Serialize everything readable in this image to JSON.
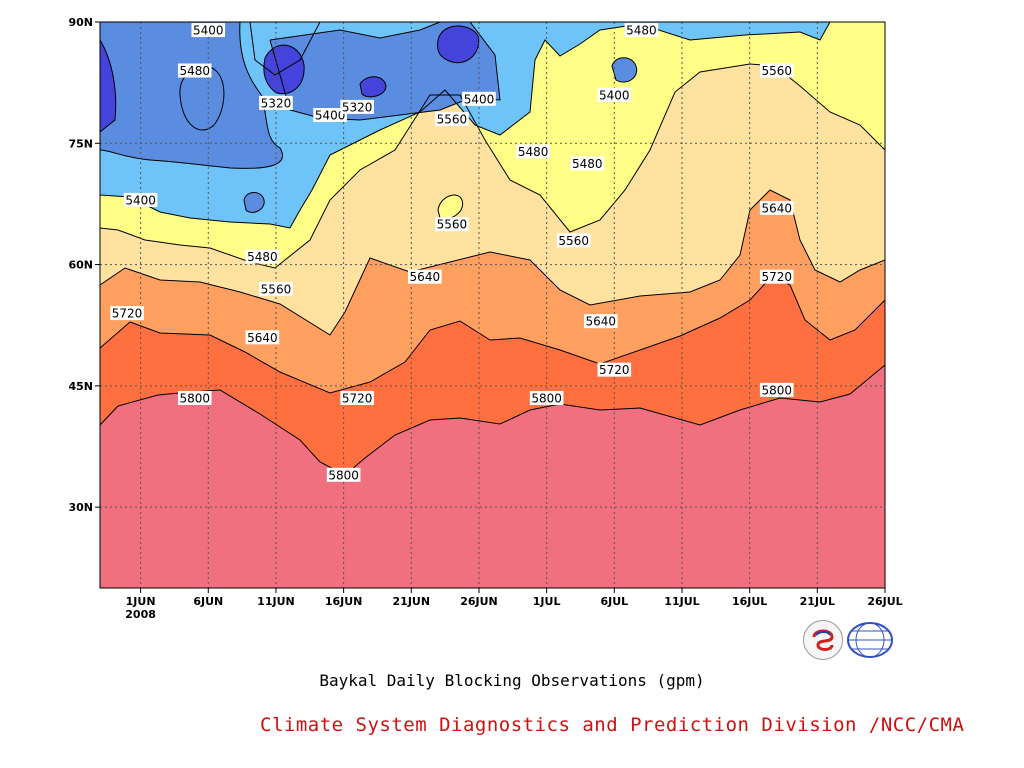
{
  "caption": "Baykal Daily Blocking Observations (gpm)",
  "credit": "Climate System Diagnostics and Prediction Division /NCC/CMA",
  "logos": {
    "left": "BCC",
    "right": "NCC"
  },
  "colors": {
    "lt5320": "#4444dd",
    "c5320": "#5a8ce0",
    "c5400": "#6ec4f8",
    "c5480": "#ffff88",
    "c5560": "#ffe2a0",
    "c5640": "#ffa060",
    "c5720": "#ff7040",
    "c5800": "#f07080",
    "credit": "#d01010"
  },
  "chart_data": {
    "type": "contour",
    "title": "Baykal Daily Blocking Observations (gpm)",
    "x_ticks": [
      "1JUN",
      "6JUN",
      "11JUN",
      "16JUN",
      "21JUN",
      "26JUN",
      "1JUL",
      "6JUL",
      "11JUL",
      "16JUL",
      "21JUL",
      "26JUL"
    ],
    "x_year_label": "2008",
    "x_range": [
      "2008-05-29",
      "2008-07-26"
    ],
    "y_ticks": [
      "30N",
      "45N",
      "60N",
      "75N",
      "90N"
    ],
    "y_range": [
      20,
      90
    ],
    "contour_levels": [
      5320,
      5400,
      5480,
      5560,
      5640,
      5720,
      5800
    ],
    "contour_labels": [
      {
        "text": "5400",
        "date": "2008-06-06",
        "lat": 89
      },
      {
        "text": "5480",
        "date": "2008-06-05",
        "lat": 84
      },
      {
        "text": "5320",
        "date": "2008-06-11",
        "lat": 80
      },
      {
        "text": "5400",
        "date": "2008-06-15",
        "lat": 78.5
      },
      {
        "text": "5320",
        "date": "2008-06-17",
        "lat": 79.5
      },
      {
        "text": "5560",
        "date": "2008-06-24",
        "lat": 78
      },
      {
        "text": "5400",
        "date": "2008-06-26",
        "lat": 80.5
      },
      {
        "text": "5480",
        "date": "2008-06-30",
        "lat": 74
      },
      {
        "text": "5480",
        "date": "2008-07-08",
        "lat": 89
      },
      {
        "text": "5400",
        "date": "2008-07-06",
        "lat": 81
      },
      {
        "text": "5480",
        "date": "2008-07-04",
        "lat": 72.5
      },
      {
        "text": "5560",
        "date": "2008-07-18",
        "lat": 84
      },
      {
        "text": "5400",
        "date": "2008-06-01",
        "lat": 68
      },
      {
        "text": "5560",
        "date": "2008-06-24",
        "lat": 65
      },
      {
        "text": "5560",
        "date": "2008-07-03",
        "lat": 63
      },
      {
        "text": "5640",
        "date": "2008-07-18",
        "lat": 67
      },
      {
        "text": "5480",
        "date": "2008-06-10",
        "lat": 61
      },
      {
        "text": "5560",
        "date": "2008-06-11",
        "lat": 57
      },
      {
        "text": "5640",
        "date": "2008-06-22",
        "lat": 58.5
      },
      {
        "text": "5720",
        "date": "2008-05-31",
        "lat": 54
      },
      {
        "text": "5640",
        "date": "2008-06-10",
        "lat": 51
      },
      {
        "text": "5640",
        "date": "2008-07-05",
        "lat": 53
      },
      {
        "text": "5720",
        "date": "2008-07-18",
        "lat": 58.5
      },
      {
        "text": "5720",
        "date": "2008-07-06",
        "lat": 47
      },
      {
        "text": "5800",
        "date": "2008-06-05",
        "lat": 43.5
      },
      {
        "text": "5720",
        "date": "2008-06-17",
        "lat": 43.5
      },
      {
        "text": "5800",
        "date": "2008-07-01",
        "lat": 43.5
      },
      {
        "text": "5800",
        "date": "2008-07-18",
        "lat": 44.5
      },
      {
        "text": "5800",
        "date": "2008-06-16",
        "lat": 34
      }
    ],
    "grid": true
  }
}
